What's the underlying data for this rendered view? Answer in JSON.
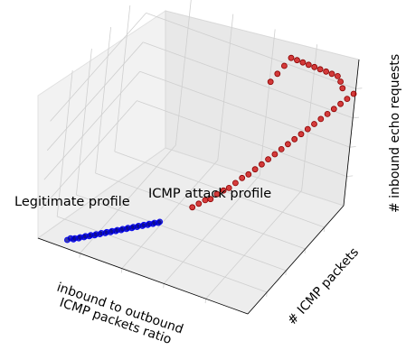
{
  "chart_data": {
    "type": "scatter",
    "projection": "3d",
    "title": "",
    "xlabel": [
      "inbound to outbound",
      "ICMP packets ratio"
    ],
    "ylabel": "# ICMP packets",
    "zlabel": "# inbound echo requests",
    "grid": true,
    "tick_labels_shown": false,
    "annotations": [
      {
        "text": "Legitimate profile"
      },
      {
        "text": "ICMP attack profile"
      }
    ],
    "series": [
      {
        "color": "#00008b",
        "edge_color": "#0000ff",
        "points": [
          [
            0.12,
            0.04,
            0.02
          ],
          [
            0.13,
            0.05,
            0.03
          ],
          [
            0.14,
            0.06,
            0.02
          ],
          [
            0.15,
            0.05,
            0.04
          ],
          [
            0.16,
            0.07,
            0.03
          ],
          [
            0.17,
            0.06,
            0.05
          ],
          [
            0.18,
            0.08,
            0.04
          ],
          [
            0.19,
            0.07,
            0.06
          ],
          [
            0.2,
            0.09,
            0.05
          ],
          [
            0.21,
            0.08,
            0.07
          ],
          [
            0.22,
            0.1,
            0.06
          ],
          [
            0.23,
            0.09,
            0.08
          ],
          [
            0.24,
            0.11,
            0.07
          ],
          [
            0.25,
            0.1,
            0.09
          ],
          [
            0.26,
            0.12,
            0.08
          ],
          [
            0.27,
            0.11,
            0.1
          ],
          [
            0.28,
            0.13,
            0.09
          ],
          [
            0.29,
            0.12,
            0.11
          ],
          [
            0.3,
            0.14,
            0.1
          ],
          [
            0.31,
            0.13,
            0.12
          ],
          [
            0.32,
            0.15,
            0.11
          ],
          [
            0.33,
            0.14,
            0.13
          ],
          [
            0.34,
            0.16,
            0.12
          ],
          [
            0.35,
            0.15,
            0.14
          ],
          [
            0.36,
            0.17,
            0.13
          ],
          [
            0.37,
            0.16,
            0.15
          ],
          [
            0.38,
            0.18,
            0.14
          ],
          [
            0.39,
            0.17,
            0.16
          ],
          [
            0.4,
            0.19,
            0.15
          ],
          [
            0.41,
            0.18,
            0.17
          ],
          [
            0.42,
            0.2,
            0.16
          ],
          [
            0.43,
            0.19,
            0.18
          ],
          [
            0.44,
            0.21,
            0.17
          ],
          [
            0.45,
            0.2,
            0.19
          ],
          [
            0.46,
            0.22,
            0.18
          ],
          [
            0.47,
            0.21,
            0.2
          ]
        ]
      },
      {
        "color": "#cc0000",
        "edge_color": "#8b0000",
        "points": [
          [
            0.5,
            0.5,
            0.1
          ],
          [
            0.52,
            0.52,
            0.12
          ],
          [
            0.54,
            0.54,
            0.14
          ],
          [
            0.56,
            0.55,
            0.15
          ],
          [
            0.58,
            0.57,
            0.18
          ],
          [
            0.6,
            0.59,
            0.2
          ],
          [
            0.62,
            0.6,
            0.22
          ],
          [
            0.64,
            0.62,
            0.25
          ],
          [
            0.66,
            0.64,
            0.28
          ],
          [
            0.68,
            0.66,
            0.3
          ],
          [
            0.7,
            0.68,
            0.33
          ],
          [
            0.72,
            0.7,
            0.36
          ],
          [
            0.74,
            0.72,
            0.39
          ],
          [
            0.76,
            0.74,
            0.42
          ],
          [
            0.78,
            0.76,
            0.45
          ],
          [
            0.8,
            0.78,
            0.48
          ],
          [
            0.82,
            0.8,
            0.51
          ],
          [
            0.84,
            0.82,
            0.54
          ],
          [
            0.86,
            0.84,
            0.57
          ],
          [
            0.88,
            0.86,
            0.6
          ],
          [
            0.9,
            0.88,
            0.63
          ],
          [
            0.92,
            0.9,
            0.66
          ],
          [
            0.94,
            0.92,
            0.69
          ],
          [
            0.96,
            0.94,
            0.72
          ],
          [
            0.98,
            0.96,
            0.75
          ],
          [
            1.0,
            0.98,
            0.78
          ],
          [
            0.95,
            0.97,
            0.8
          ],
          [
            0.93,
            0.99,
            0.82
          ],
          [
            0.91,
            1.0,
            0.84
          ],
          [
            0.89,
            0.98,
            0.86
          ],
          [
            0.87,
            0.96,
            0.88
          ],
          [
            0.85,
            0.94,
            0.9
          ],
          [
            0.83,
            0.92,
            0.92
          ],
          [
            0.81,
            0.9,
            0.94
          ],
          [
            0.79,
            0.88,
            0.96
          ],
          [
            0.77,
            0.86,
            0.98
          ],
          [
            0.75,
            0.84,
            1.0
          ],
          [
            0.73,
            0.82,
            0.95
          ],
          [
            0.71,
            0.8,
            0.9
          ],
          [
            0.69,
            0.78,
            0.85
          ]
        ]
      }
    ]
  }
}
